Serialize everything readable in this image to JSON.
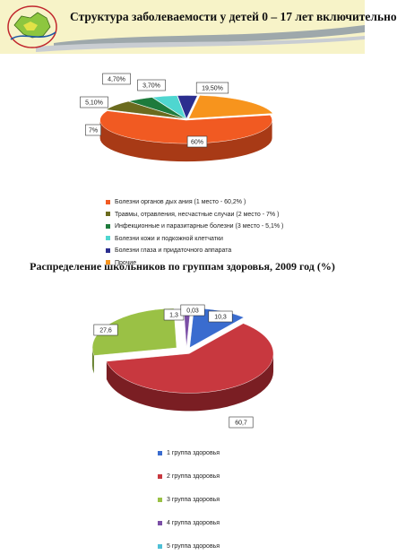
{
  "header": {
    "title": "Структура заболеваемости у детей 0 – 17 лет включительно"
  },
  "chart_data": [
    {
      "type": "pie",
      "title": "",
      "slices": [
        {
          "label": "Болезни органов дых ания (1 место - 60,2% )",
          "value": 60.2,
          "data_label": "60%",
          "color": "#f15a22",
          "side": "#a83a16"
        },
        {
          "label": "Травмы, отравления, несчастные случаи (2 место - 7% )",
          "value": 7,
          "data_label": "7%",
          "color": "#6b6b1e",
          "side": "#45450f"
        },
        {
          "label": "Инфекционные и паразитарные болезни (3 место - 5,1% )",
          "value": 5.1,
          "data_label": "5,10%",
          "color": "#1e7b3c",
          "side": "#114d24"
        },
        {
          "label": "Болезни кожи и подкожной клетчатки",
          "value": 4.7,
          "data_label": "4,70%",
          "color": "#4fd6d0",
          "side": "#2e918c"
        },
        {
          "label": "Болезни глаза и придаточного аппарата",
          "value": 3.7,
          "data_label": "3,70%",
          "color": "#2b2e8f",
          "side": "#191b5c"
        },
        {
          "label": "Прочие",
          "value": 19.5,
          "data_label": "19,50%",
          "color": "#f7941d",
          "side": "#b5650b"
        }
      ]
    },
    {
      "type": "pie",
      "title": "Распределение школьников по группам здоровья, 2009 год (%)",
      "slices": [
        {
          "label": "1 группа здоровья",
          "value": 10.3,
          "data_label": "10,3",
          "color": "#3a6ccf",
          "side": "#203f7d"
        },
        {
          "label": "2 группа здоровья",
          "value": 60.7,
          "data_label": "60,7",
          "color": "#c8383f",
          "side": "#7a1e23"
        },
        {
          "label": "3 группа здоровья",
          "value": 27.6,
          "data_label": "27,6",
          "color": "#9ac145",
          "side": "#5e7a23"
        },
        {
          "label": "4 группа здоровья",
          "value": 1.3,
          "data_label": "1,3",
          "color": "#7b4fa6",
          "side": "#4b2d68"
        },
        {
          "label": "5 группа здоровья",
          "value": 0.03,
          "data_label": "0,03",
          "color": "#4ec0d6",
          "side": "#2b7c8c"
        }
      ]
    }
  ]
}
